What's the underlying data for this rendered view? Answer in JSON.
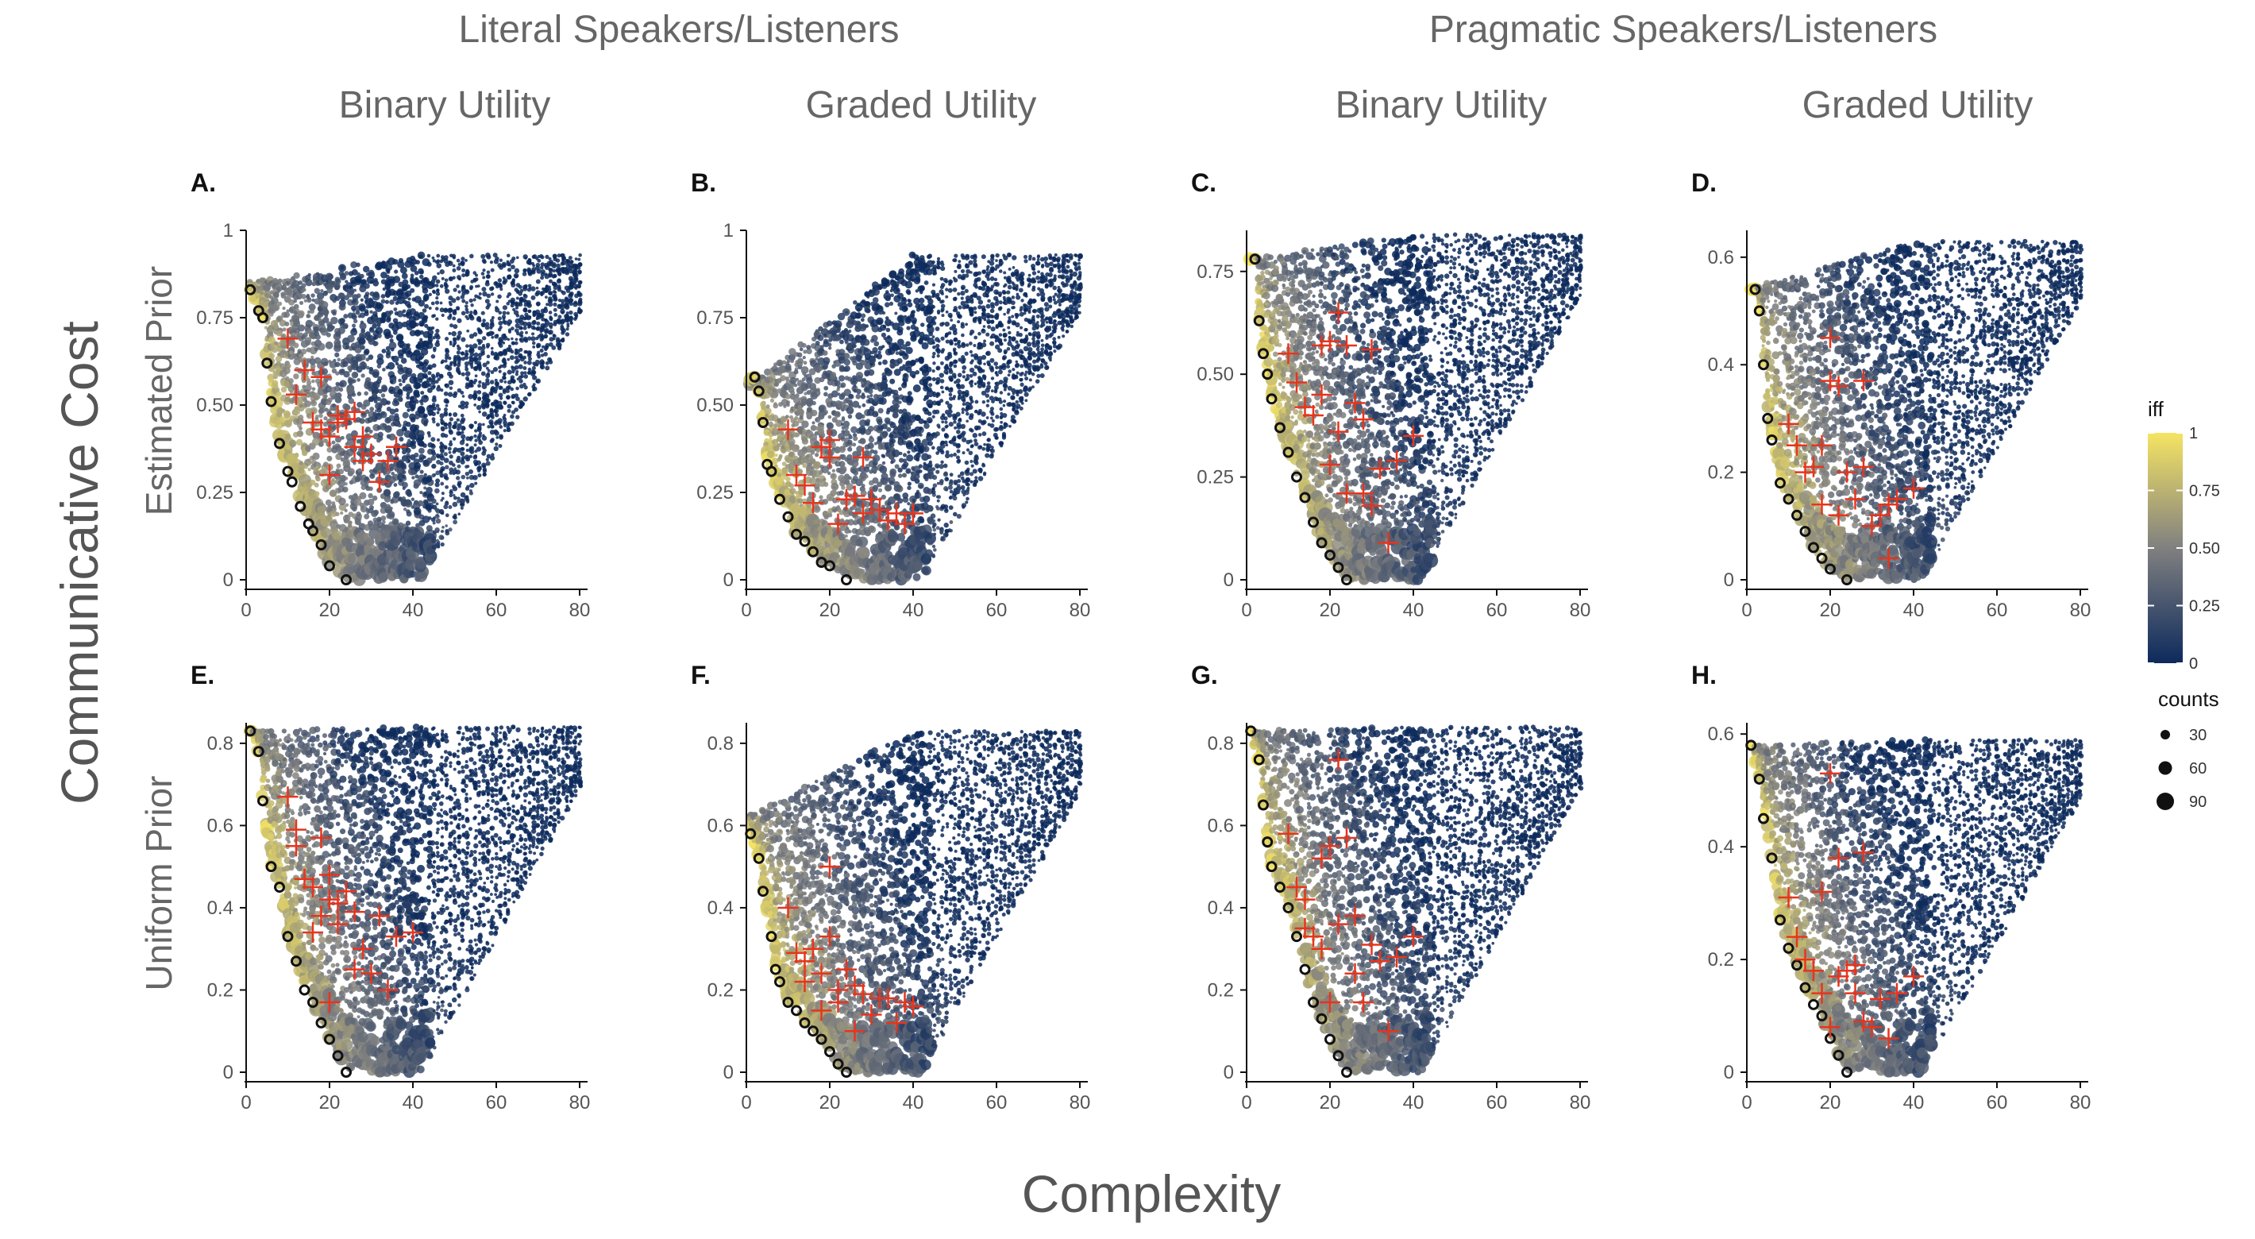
{
  "figure": {
    "group_titles": [
      "Literal Speakers/Listeners",
      "Pragmatic Speakers/Listeners"
    ],
    "column_titles": [
      "Binary Utility",
      "Graded Utility",
      "Binary Utility",
      "Graded Utility"
    ],
    "row_labels": [
      "Estimated Prior",
      "Uniform Prior"
    ],
    "y_label": "Communicative Cost",
    "x_label": "Complexity",
    "colors": {
      "high": "#f5e463",
      "mid": "#808080",
      "low": "#0d2a5c",
      "marker": "#e8341c",
      "optimal": "#111111"
    }
  },
  "legend": {
    "color_title": "iff",
    "color_ticks": [
      "1",
      "0.75",
      "0.50",
      "0.25",
      "0"
    ],
    "size_title": "counts",
    "size_ticks": [
      "30",
      "60",
      "90"
    ]
  },
  "chart_data": [
    {
      "panel": "A.",
      "type": "scatter",
      "xlim": [
        0,
        80
      ],
      "ylim": [
        0,
        1
      ],
      "xticks": [
        "0",
        "20",
        "40",
        "60",
        "80"
      ],
      "yticks": [
        "0",
        "0.25",
        "0.50",
        "0.75",
        "1"
      ],
      "ymax": 0.93,
      "top_start": 0.85,
      "floor": 0.0,
      "frontier": [
        [
          1,
          0.83
        ],
        [
          3,
          0.77
        ],
        [
          4,
          0.75
        ],
        [
          5,
          0.62
        ],
        [
          6,
          0.51
        ],
        [
          8,
          0.39
        ],
        [
          10,
          0.31
        ],
        [
          11,
          0.28
        ],
        [
          13,
          0.21
        ],
        [
          15,
          0.16
        ],
        [
          16,
          0.14
        ],
        [
          18,
          0.1
        ],
        [
          20,
          0.04
        ],
        [
          24,
          0.0
        ]
      ],
      "markers": [
        [
          10,
          0.69
        ],
        [
          12,
          0.53
        ],
        [
          14,
          0.6
        ],
        [
          16,
          0.45
        ],
        [
          18,
          0.43
        ],
        [
          18,
          0.58
        ],
        [
          20,
          0.41
        ],
        [
          22,
          0.45
        ],
        [
          22,
          0.47
        ],
        [
          24,
          0.46
        ],
        [
          20,
          0.3
        ],
        [
          26,
          0.48
        ],
        [
          26,
          0.38
        ],
        [
          28,
          0.41
        ],
        [
          28,
          0.34
        ],
        [
          30,
          0.36
        ],
        [
          32,
          0.28
        ],
        [
          34,
          0.34
        ],
        [
          36,
          0.38
        ]
      ]
    },
    {
      "panel": "B.",
      "type": "scatter",
      "xlim": [
        0,
        80
      ],
      "ylim": [
        0,
        1
      ],
      "xticks": [
        "0",
        "20",
        "40",
        "60",
        "80"
      ],
      "yticks": [
        "0",
        "0.25",
        "0.50",
        "0.75",
        "1"
      ],
      "ymax": 0.93,
      "top_start": 0.55,
      "floor": 0.0,
      "frontier": [
        [
          2,
          0.58
        ],
        [
          3,
          0.54
        ],
        [
          4,
          0.45
        ],
        [
          5,
          0.33
        ],
        [
          6,
          0.31
        ],
        [
          8,
          0.23
        ],
        [
          10,
          0.18
        ],
        [
          12,
          0.13
        ],
        [
          14,
          0.11
        ],
        [
          16,
          0.08
        ],
        [
          18,
          0.05
        ],
        [
          20,
          0.04
        ],
        [
          24,
          0.0
        ]
      ],
      "markers": [
        [
          10,
          0.43
        ],
        [
          12,
          0.3
        ],
        [
          14,
          0.27
        ],
        [
          16,
          0.22
        ],
        [
          18,
          0.38
        ],
        [
          20,
          0.4
        ],
        [
          20,
          0.35
        ],
        [
          22,
          0.16
        ],
        [
          24,
          0.23
        ],
        [
          26,
          0.24
        ],
        [
          28,
          0.19
        ],
        [
          28,
          0.35
        ],
        [
          30,
          0.23
        ],
        [
          32,
          0.2
        ],
        [
          34,
          0.17
        ],
        [
          36,
          0.19
        ],
        [
          38,
          0.16
        ],
        [
          40,
          0.19
        ]
      ]
    },
    {
      "panel": "C.",
      "type": "scatter",
      "xlim": [
        0,
        80
      ],
      "ylim": [
        0,
        0.85
      ],
      "xticks": [
        "0",
        "20",
        "40",
        "60",
        "80"
      ],
      "yticks": [
        "0",
        "0.25",
        "0.50",
        "0.75"
      ],
      "ymax": 0.84,
      "top_start": 0.78,
      "floor": 0.0,
      "frontier": [
        [
          2,
          0.78
        ],
        [
          3,
          0.63
        ],
        [
          4,
          0.55
        ],
        [
          5,
          0.5
        ],
        [
          6,
          0.44
        ],
        [
          8,
          0.37
        ],
        [
          10,
          0.31
        ],
        [
          12,
          0.25
        ],
        [
          14,
          0.2
        ],
        [
          16,
          0.14
        ],
        [
          18,
          0.09
        ],
        [
          20,
          0.06
        ],
        [
          22,
          0.03
        ],
        [
          24,
          0.0
        ]
      ],
      "markers": [
        [
          10,
          0.55
        ],
        [
          12,
          0.48
        ],
        [
          14,
          0.42
        ],
        [
          16,
          0.4
        ],
        [
          18,
          0.45
        ],
        [
          18,
          0.57
        ],
        [
          20,
          0.58
        ],
        [
          20,
          0.28
        ],
        [
          22,
          0.65
        ],
        [
          22,
          0.36
        ],
        [
          24,
          0.57
        ],
        [
          24,
          0.21
        ],
        [
          26,
          0.43
        ],
        [
          28,
          0.39
        ],
        [
          28,
          0.21
        ],
        [
          30,
          0.18
        ],
        [
          32,
          0.27
        ],
        [
          34,
          0.09
        ],
        [
          36,
          0.29
        ],
        [
          40,
          0.35
        ],
        [
          30,
          0.56
        ]
      ]
    },
    {
      "panel": "D.",
      "type": "scatter",
      "xlim": [
        0,
        80
      ],
      "ylim": [
        0,
        0.65
      ],
      "xticks": [
        "0",
        "20",
        "40",
        "60",
        "80"
      ],
      "yticks": [
        "0",
        "0.2",
        "0.4",
        "0.6"
      ],
      "ymax": 0.63,
      "top_start": 0.54,
      "floor": 0.0,
      "frontier": [
        [
          2,
          0.54
        ],
        [
          3,
          0.5
        ],
        [
          4,
          0.4
        ],
        [
          5,
          0.3
        ],
        [
          6,
          0.26
        ],
        [
          8,
          0.18
        ],
        [
          10,
          0.15
        ],
        [
          12,
          0.12
        ],
        [
          14,
          0.09
        ],
        [
          16,
          0.06
        ],
        [
          18,
          0.04
        ],
        [
          20,
          0.02
        ],
        [
          24,
          0.0
        ]
      ],
      "markers": [
        [
          10,
          0.29
        ],
        [
          12,
          0.25
        ],
        [
          14,
          0.2
        ],
        [
          16,
          0.21
        ],
        [
          18,
          0.25
        ],
        [
          18,
          0.14
        ],
        [
          20,
          0.45
        ],
        [
          20,
          0.37
        ],
        [
          22,
          0.36
        ],
        [
          22,
          0.12
        ],
        [
          24,
          0.2
        ],
        [
          26,
          0.15
        ],
        [
          28,
          0.37
        ],
        [
          28,
          0.21
        ],
        [
          30,
          0.1
        ],
        [
          32,
          0.12
        ],
        [
          34,
          0.14
        ],
        [
          34,
          0.04
        ],
        [
          36,
          0.15
        ],
        [
          40,
          0.17
        ]
      ]
    },
    {
      "panel": "E.",
      "type": "scatter",
      "xlim": [
        0,
        80
      ],
      "ylim": [
        0,
        0.85
      ],
      "xticks": [
        "0",
        "20",
        "40",
        "60",
        "80"
      ],
      "yticks": [
        "0",
        "0.2",
        "0.4",
        "0.6",
        "0.8"
      ],
      "ymax": 0.84,
      "top_start": 0.83,
      "floor": 0.0,
      "frontier": [
        [
          1,
          0.83
        ],
        [
          3,
          0.78
        ],
        [
          4,
          0.66
        ],
        [
          6,
          0.5
        ],
        [
          8,
          0.45
        ],
        [
          10,
          0.33
        ],
        [
          12,
          0.27
        ],
        [
          14,
          0.2
        ],
        [
          16,
          0.17
        ],
        [
          18,
          0.12
        ],
        [
          20,
          0.08
        ],
        [
          22,
          0.04
        ],
        [
          24,
          0.0
        ]
      ],
      "markers": [
        [
          10,
          0.67
        ],
        [
          12,
          0.59
        ],
        [
          12,
          0.55
        ],
        [
          14,
          0.47
        ],
        [
          16,
          0.45
        ],
        [
          16,
          0.34
        ],
        [
          18,
          0.57
        ],
        [
          18,
          0.38
        ],
        [
          20,
          0.48
        ],
        [
          20,
          0.42
        ],
        [
          22,
          0.41
        ],
        [
          22,
          0.36
        ],
        [
          24,
          0.44
        ],
        [
          26,
          0.39
        ],
        [
          26,
          0.25
        ],
        [
          28,
          0.3
        ],
        [
          30,
          0.24
        ],
        [
          32,
          0.38
        ],
        [
          34,
          0.2
        ],
        [
          36,
          0.33
        ],
        [
          40,
          0.34
        ],
        [
          20,
          0.17
        ]
      ]
    },
    {
      "panel": "F.",
      "type": "scatter",
      "xlim": [
        0,
        80
      ],
      "ylim": [
        0,
        0.85
      ],
      "xticks": [
        "0",
        "20",
        "40",
        "60",
        "80"
      ],
      "yticks": [
        "0",
        "0.2",
        "0.4",
        "0.6",
        "0.8"
      ],
      "ymax": 0.83,
      "top_start": 0.62,
      "floor": 0.0,
      "frontier": [
        [
          1,
          0.58
        ],
        [
          3,
          0.52
        ],
        [
          4,
          0.44
        ],
        [
          6,
          0.33
        ],
        [
          7,
          0.25
        ],
        [
          8,
          0.22
        ],
        [
          10,
          0.17
        ],
        [
          12,
          0.15
        ],
        [
          14,
          0.12
        ],
        [
          16,
          0.1
        ],
        [
          18,
          0.08
        ],
        [
          20,
          0.05
        ],
        [
          22,
          0.02
        ],
        [
          24,
          0.0
        ]
      ],
      "markers": [
        [
          10,
          0.4
        ],
        [
          12,
          0.29
        ],
        [
          14,
          0.27
        ],
        [
          14,
          0.22
        ],
        [
          16,
          0.3
        ],
        [
          18,
          0.24
        ],
        [
          18,
          0.15
        ],
        [
          20,
          0.5
        ],
        [
          20,
          0.33
        ],
        [
          22,
          0.2
        ],
        [
          22,
          0.17
        ],
        [
          24,
          0.25
        ],
        [
          26,
          0.21
        ],
        [
          26,
          0.1
        ],
        [
          28,
          0.19
        ],
        [
          30,
          0.14
        ],
        [
          32,
          0.18
        ],
        [
          34,
          0.18
        ],
        [
          36,
          0.12
        ],
        [
          38,
          0.17
        ],
        [
          40,
          0.16
        ]
      ]
    },
    {
      "panel": "G.",
      "type": "scatter",
      "xlim": [
        0,
        80
      ],
      "ylim": [
        0,
        0.85
      ],
      "xticks": [
        "0",
        "20",
        "40",
        "60",
        "80"
      ],
      "yticks": [
        "0",
        "0.2",
        "0.4",
        "0.6",
        "0.8"
      ],
      "ymax": 0.84,
      "top_start": 0.83,
      "floor": 0.0,
      "frontier": [
        [
          1,
          0.83
        ],
        [
          3,
          0.76
        ],
        [
          4,
          0.65
        ],
        [
          5,
          0.56
        ],
        [
          6,
          0.5
        ],
        [
          8,
          0.45
        ],
        [
          10,
          0.4
        ],
        [
          12,
          0.33
        ],
        [
          14,
          0.25
        ],
        [
          16,
          0.17
        ],
        [
          18,
          0.13
        ],
        [
          20,
          0.08
        ],
        [
          22,
          0.04
        ],
        [
          24,
          0.0
        ]
      ],
      "markers": [
        [
          10,
          0.58
        ],
        [
          12,
          0.45
        ],
        [
          14,
          0.42
        ],
        [
          14,
          0.35
        ],
        [
          16,
          0.33
        ],
        [
          18,
          0.52
        ],
        [
          18,
          0.3
        ],
        [
          20,
          0.55
        ],
        [
          20,
          0.17
        ],
        [
          22,
          0.76
        ],
        [
          22,
          0.36
        ],
        [
          24,
          0.57
        ],
        [
          26,
          0.38
        ],
        [
          26,
          0.24
        ],
        [
          28,
          0.17
        ],
        [
          30,
          0.31
        ],
        [
          32,
          0.27
        ],
        [
          34,
          0.1
        ],
        [
          36,
          0.28
        ],
        [
          40,
          0.33
        ]
      ]
    },
    {
      "panel": "H.",
      "type": "scatter",
      "xlim": [
        0,
        80
      ],
      "ylim": [
        0,
        0.62
      ],
      "xticks": [
        "0",
        "20",
        "40",
        "60",
        "80"
      ],
      "yticks": [
        "0",
        "0.2",
        "0.4",
        "0.6"
      ],
      "ymax": 0.59,
      "top_start": 0.58,
      "floor": 0.0,
      "frontier": [
        [
          1,
          0.58
        ],
        [
          3,
          0.52
        ],
        [
          4,
          0.45
        ],
        [
          6,
          0.38
        ],
        [
          8,
          0.27
        ],
        [
          10,
          0.22
        ],
        [
          12,
          0.19
        ],
        [
          14,
          0.15
        ],
        [
          16,
          0.12
        ],
        [
          18,
          0.1
        ],
        [
          20,
          0.06
        ],
        [
          22,
          0.03
        ],
        [
          24,
          0.0
        ]
      ],
      "markers": [
        [
          10,
          0.31
        ],
        [
          12,
          0.24
        ],
        [
          14,
          0.2
        ],
        [
          16,
          0.18
        ],
        [
          18,
          0.32
        ],
        [
          18,
          0.14
        ],
        [
          20,
          0.53
        ],
        [
          20,
          0.08
        ],
        [
          22,
          0.38
        ],
        [
          22,
          0.17
        ],
        [
          24,
          0.18
        ],
        [
          26,
          0.19
        ],
        [
          26,
          0.14
        ],
        [
          28,
          0.39
        ],
        [
          28,
          0.09
        ],
        [
          30,
          0.08
        ],
        [
          32,
          0.13
        ],
        [
          34,
          0.06
        ],
        [
          36,
          0.14
        ],
        [
          40,
          0.17
        ]
      ]
    }
  ]
}
